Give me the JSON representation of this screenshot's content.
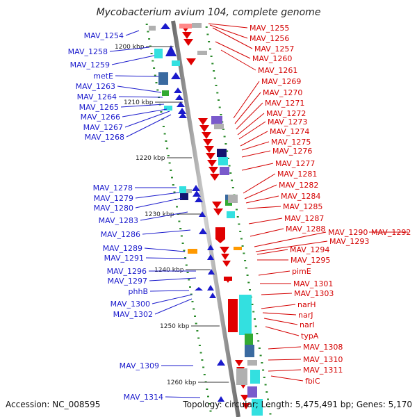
{
  "header": {
    "title": "Mycobacterium avium 104, complete genome"
  },
  "footer": {
    "accession": "Accession: NC_008595",
    "topology": "Topology: circular; Length: 5,475,491 bp; Genes: 5,170"
  },
  "scale_labels": [
    "1200 kbp",
    "1210 kbp",
    "1220 kbp",
    "1230 kbp",
    "1240 kbp",
    "1250 kbp",
    "1260 kbp"
  ],
  "genes_left": [
    "MAV_1254",
    "MAV_1258",
    "MAV_1259",
    "metE",
    "MAV_1263",
    "MAV_1264",
    "MAV_1265",
    "MAV_1266",
    "MAV_1267",
    "MAV_1268",
    "MAV_1278",
    "MAV_1279",
    "MAV_1280",
    "MAV_1283",
    "MAV_1286",
    "MAV_1289",
    "MAV_1291",
    "MAV_1296",
    "MAV_1297",
    "phhB",
    "MAV_1300",
    "MAV_1302",
    "MAV_1309",
    "MAV_1314"
  ],
  "genes_right": [
    "MAV_1255",
    "MAV_1256",
    "MAV_1257",
    "MAV_1260",
    "MAV_1261",
    "MAV_1269",
    "MAV_1270",
    "MAV_1271",
    "MAV_1272",
    "MAV_1273",
    "MAV_1274",
    "MAV_1275",
    "MAV_1276",
    "MAV_1277",
    "MAV_1281",
    "MAV_1282",
    "MAV_1284",
    "MAV_1285",
    "MAV_1287",
    "MAV_1288",
    "MAV_1290",
    "MAV_1292",
    "MAV_1293",
    "MAV_1294",
    "MAV_1295",
    "pimE",
    "MAV_1301",
    "MAV_1303",
    "narH",
    "narJ",
    "narI",
    "typA",
    "MAV_1308",
    "MAV_1310",
    "MAV_1311",
    "fbiC"
  ],
  "colors": {
    "forward_strand": "#1a1acc",
    "reverse_strand": "#e00000",
    "backbone": "#909090",
    "tick": "#2a8a2a",
    "feature_cyan": "#33e0e0",
    "feature_navy": "#141470",
    "feature_purple": "#7a5acc",
    "feature_steel": "#3a6aa0",
    "feature_green": "#33aa33",
    "feature_orange": "#ff9900",
    "feature_gray": "#b0b0b0",
    "feature_pink": "#ff8888"
  }
}
